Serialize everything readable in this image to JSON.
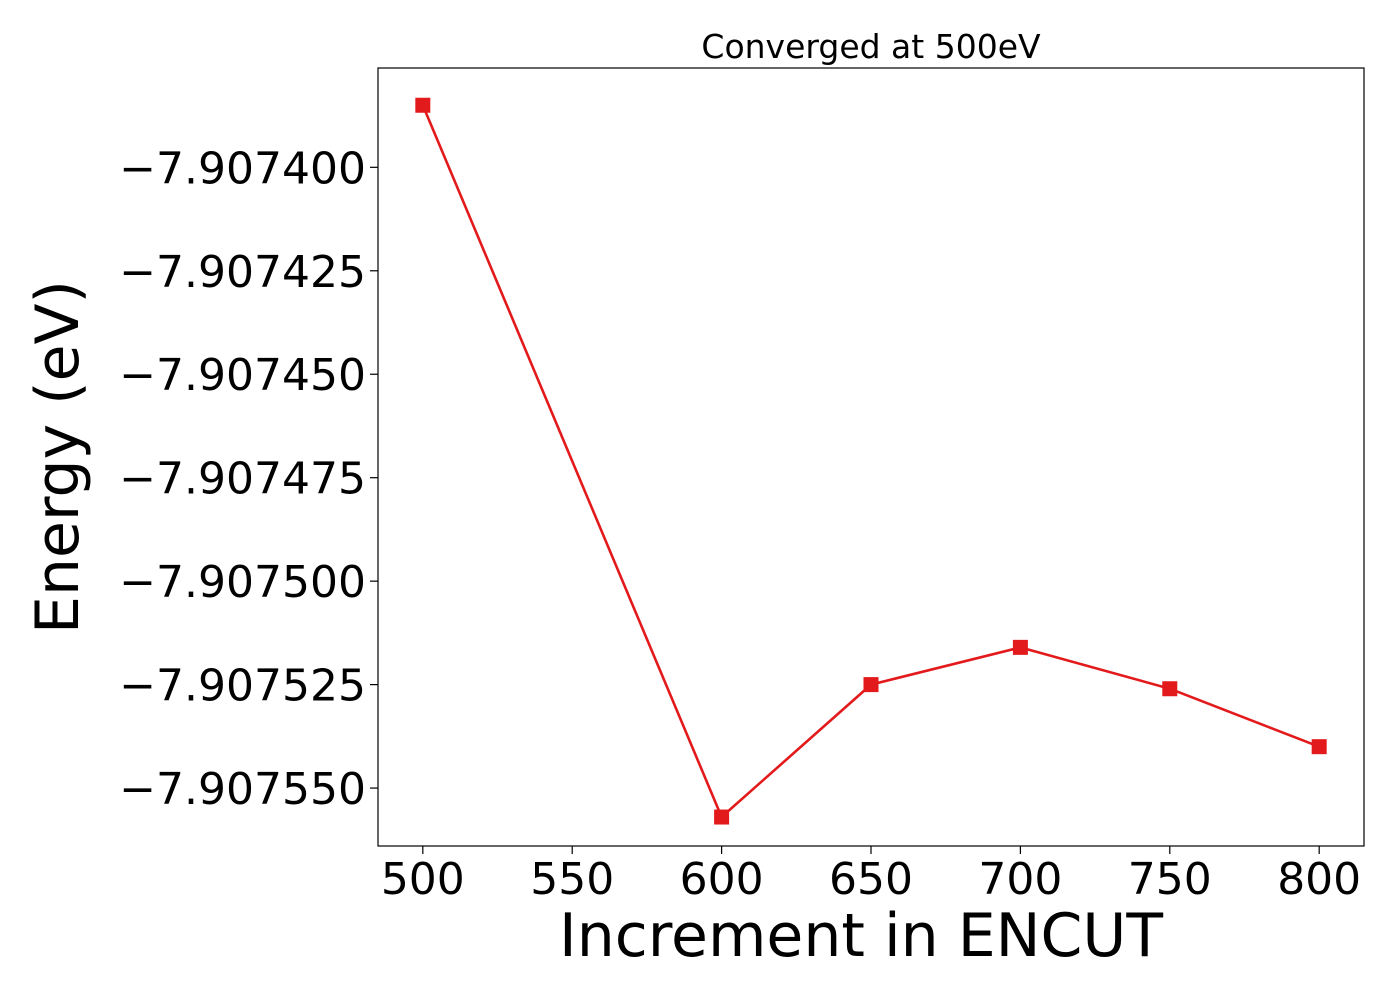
{
  "chart_data": {
    "type": "line",
    "title": "Converged at 500eV",
    "xlabel": "Increment in ENCUT",
    "ylabel": "Energy (eV)",
    "x": [
      500,
      600,
      650,
      700,
      750,
      800
    ],
    "series": [
      {
        "values": [
          -7.907385,
          -7.907557,
          -7.907525,
          -7.907516,
          -7.907526,
          -7.90754
        ],
        "color": "#e31a1c",
        "marker": "square"
      }
    ],
    "xticks": [
      500,
      550,
      600,
      650,
      700,
      750,
      800
    ],
    "xtick_labels": [
      "500",
      "550",
      "600",
      "650",
      "700",
      "750",
      "800"
    ],
    "yticks": [
      -7.9074,
      -7.907425,
      -7.90745,
      -7.907475,
      -7.9075,
      -7.907525,
      -7.90755
    ],
    "ytick_labels": [
      "−7.907400",
      "−7.907425",
      "−7.907450",
      "−7.907475",
      "−7.907500",
      "−7.907525",
      "−7.907550"
    ],
    "xlim": [
      485,
      815
    ],
    "ylim": [
      -7.907564,
      -7.907376
    ],
    "grid": false,
    "legend": false
  }
}
